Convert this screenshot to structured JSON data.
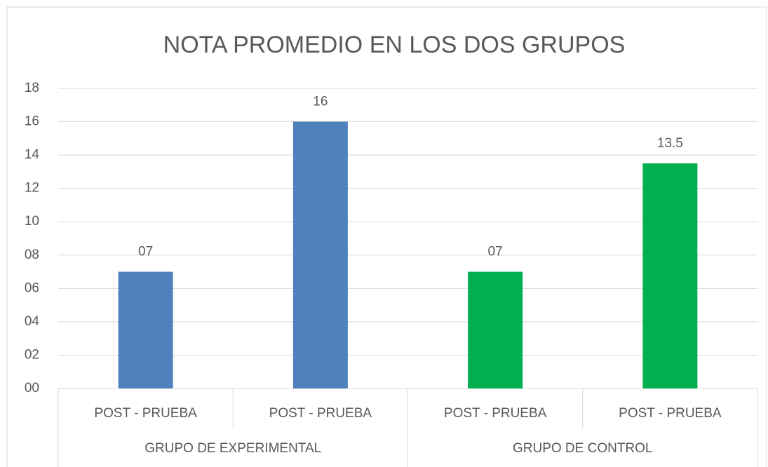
{
  "chart_data": {
    "type": "bar",
    "title": "NOTA PROMEDIO EN LOS DOS GRUPOS",
    "categories": [
      "POST - PRUEBA",
      "POST - PRUEBA",
      "POST - PRUEBA",
      "POST - PRUEBA"
    ],
    "groups": [
      {
        "name": "GRUPO DE EXPERIMENTAL",
        "size": 2
      },
      {
        "name": "GRUPO DE CONTROL",
        "size": 2
      }
    ],
    "values": [
      7,
      16,
      7,
      13.5
    ],
    "value_labels": [
      "07",
      "16",
      "07",
      "13.5"
    ],
    "colors": [
      "#4f81bd",
      "#4f81bd",
      "#00b050",
      "#00b050"
    ],
    "ylim": [
      0,
      18
    ],
    "yticks": [
      {
        "value": 0,
        "label": "00"
      },
      {
        "value": 2,
        "label": "02"
      },
      {
        "value": 4,
        "label": "04"
      },
      {
        "value": 6,
        "label": "06"
      },
      {
        "value": 8,
        "label": "08"
      },
      10,
      12,
      14,
      16,
      18
    ],
    "grid": true
  }
}
